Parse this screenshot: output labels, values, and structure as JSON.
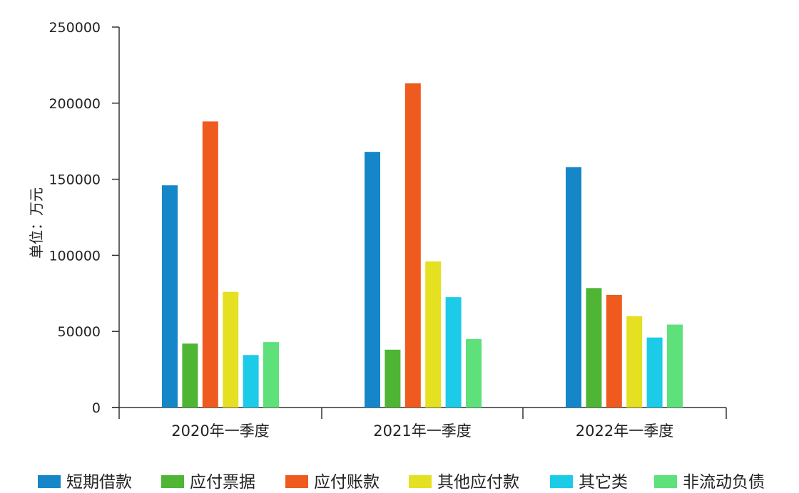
{
  "chart_data": {
    "type": "bar",
    "title": "",
    "xlabel": "",
    "ylabel": "单位：万元",
    "ylim": [
      0,
      250000
    ],
    "yticks": [
      0,
      50000,
      100000,
      150000,
      200000,
      250000
    ],
    "grid": false,
    "legend_position": "bottom",
    "categories": [
      "2020年一季度",
      "2021年一季度",
      "2022年一季度"
    ],
    "series": [
      {
        "name": "短期借款",
        "color": "#1587c9",
        "values": [
          146000,
          168000,
          158000
        ]
      },
      {
        "name": "应付票据",
        "color": "#4fb535",
        "values": [
          42000,
          38000,
          78500
        ]
      },
      {
        "name": "应付账款",
        "color": "#ef5a1e",
        "values": [
          188000,
          213000,
          74000
        ]
      },
      {
        "name": "其他应付款",
        "color": "#e5e021",
        "values": [
          76000,
          96000,
          60000
        ]
      },
      {
        "name": "其它类",
        "color": "#1ccbe8",
        "values": [
          34500,
          72500,
          46000
        ]
      },
      {
        "name": "非流动负债",
        "color": "#5ee07a",
        "values": [
          43000,
          45000,
          54500
        ]
      }
    ]
  }
}
